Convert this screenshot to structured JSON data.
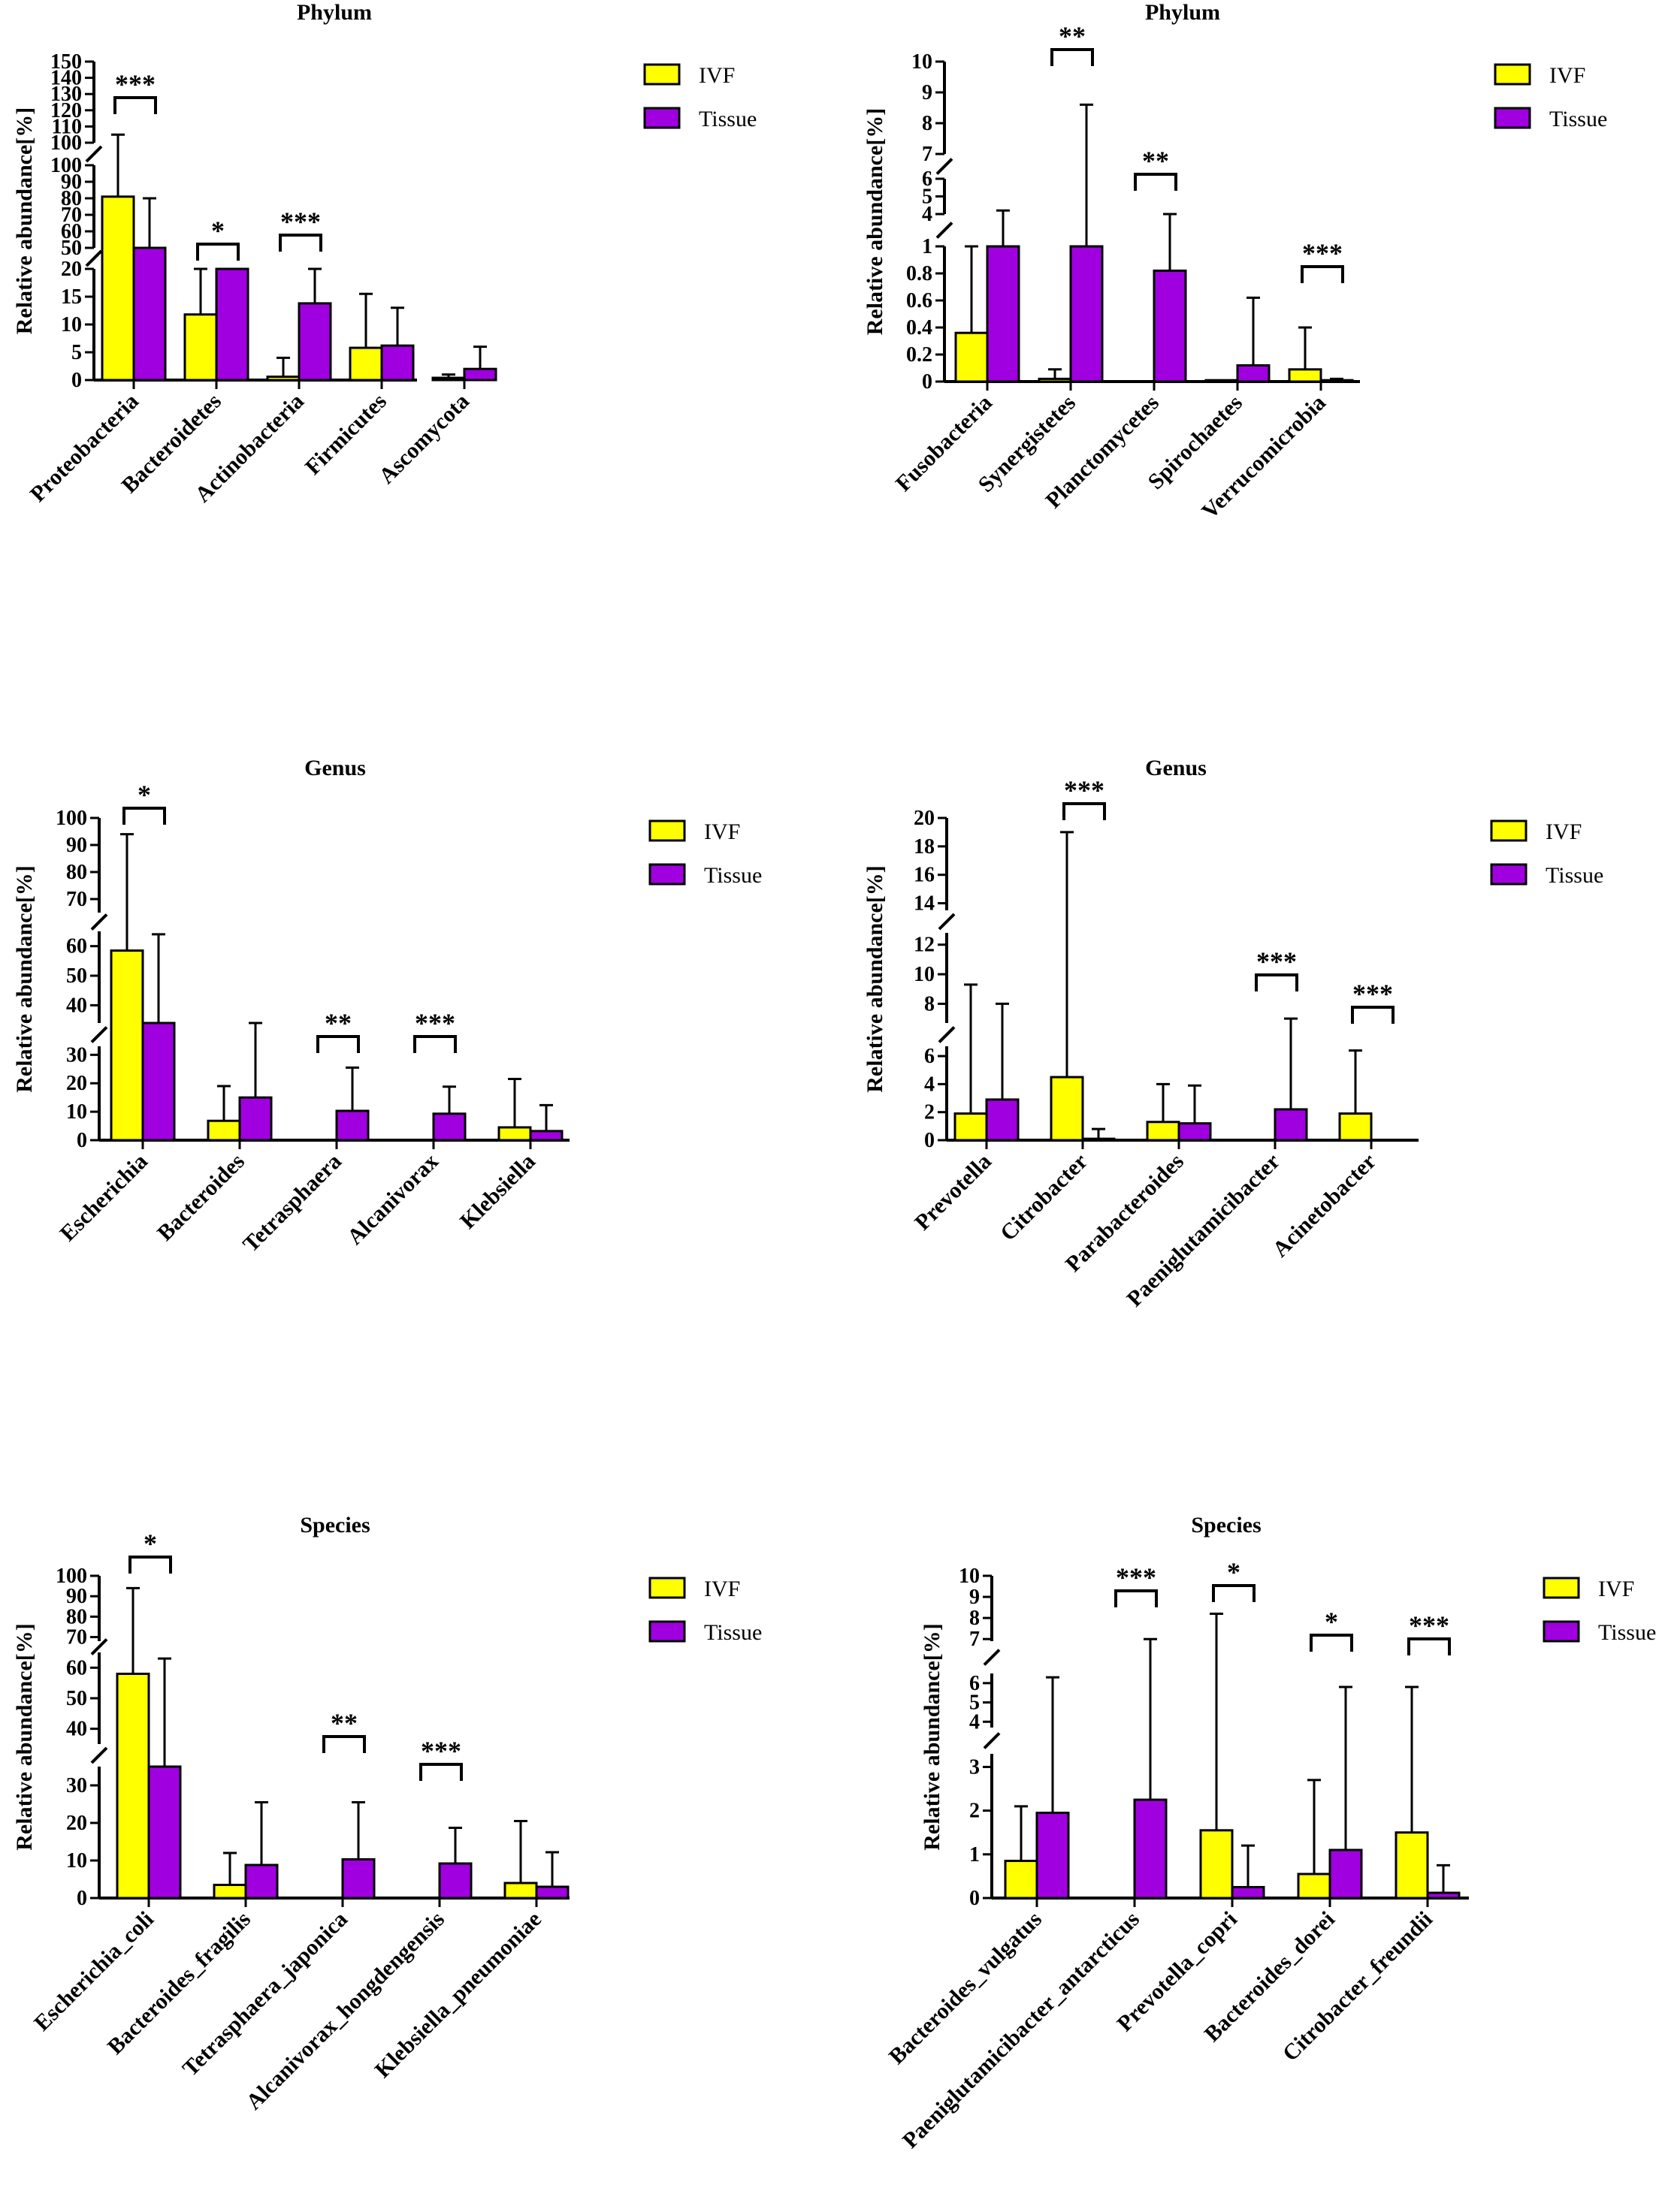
{
  "figure": {
    "colors": {
      "ivf": "#ffff00",
      "tissue": "#a000e0",
      "ink": "#000000"
    }
  },
  "chart_data": [
    {
      "id": "phylum-a",
      "type": "bar",
      "title": "Phylum",
      "ylabel": "Relative abundance[%]",
      "legend": {
        "ivf": "IVF",
        "tissue": "Tissue"
      },
      "categories": [
        "Proteobacteria",
        "Bacteroidetes",
        "Actinobacteria",
        "Firmicutes",
        "Ascomycota"
      ],
      "series": [
        {
          "name": "IVF",
          "values": [
            81,
            11.8,
            0.6,
            5.8,
            0.4
          ],
          "errors": [
            105,
            20,
            4,
            15.5,
            1
          ]
        },
        {
          "name": "Tissue",
          "values": [
            50,
            20,
            13.8,
            6.2,
            2.0
          ],
          "errors": [
            80,
            21,
            20,
            13,
            6
          ]
        }
      ],
      "yaxis_segments": [
        {
          "range": [
            0,
            20
          ],
          "ticks": [
            0,
            5,
            10,
            15,
            20
          ]
        },
        {
          "range": [
            50,
            100
          ],
          "ticks": [
            50,
            60,
            70,
            80,
            90,
            100
          ]
        },
        {
          "range": [
            100,
            150
          ],
          "ticks": [
            100,
            110,
            120,
            130,
            140,
            150
          ]
        }
      ],
      "significance": [
        {
          "category": "Proteobacteria",
          "label": "***"
        },
        {
          "category": "Bacteroidetes",
          "label": "*"
        },
        {
          "category": "Actinobacteria",
          "label": "***"
        }
      ]
    },
    {
      "id": "phylum-b",
      "type": "bar",
      "title": "Phylum",
      "ylabel": "Relative abundance[%]",
      "legend": {
        "ivf": "IVF",
        "tissue": "Tissue"
      },
      "categories": [
        "Fusobacteria",
        "Synergistetes",
        "Planctomycetes",
        "Spirochaetes",
        "Verrucomicrobia"
      ],
      "series": [
        {
          "name": "IVF",
          "values": [
            0.36,
            0.02,
            0.0,
            0.01,
            0.09
          ],
          "errors": [
            1.0,
            0.09,
            0,
            0.01,
            0.4
          ]
        },
        {
          "name": "Tissue",
          "values": [
            1.0,
            1.0,
            0.82,
            0.12,
            0.01
          ],
          "errors": [
            4.2,
            8.6,
            4.0,
            0.62,
            0.02
          ]
        }
      ],
      "yaxis_segments": [
        {
          "range": [
            0,
            1.0
          ],
          "ticks": [
            0.0,
            0.2,
            0.4,
            0.6,
            0.8,
            1.0
          ]
        },
        {
          "range": [
            4,
            6
          ],
          "ticks": [
            4,
            5,
            6
          ]
        },
        {
          "range": [
            7,
            10
          ],
          "ticks": [
            7,
            8,
            9,
            10
          ]
        }
      ],
      "significance": [
        {
          "category": "Synergistetes",
          "label": "**"
        },
        {
          "category": "Planctomycetes",
          "label": "**"
        },
        {
          "category": "Verrucomicrobia",
          "label": "***"
        }
      ]
    },
    {
      "id": "genus-a",
      "type": "bar",
      "title": "Genus",
      "ylabel": "Relative abundance[%]",
      "legend": {
        "ivf": "IVF",
        "tissue": "Tissue"
      },
      "categories": [
        "Escherichia",
        "Bacteroides",
        "Tetrasphaera",
        "Alcanivorax",
        "Klebsiella"
      ],
      "series": [
        {
          "name": "IVF",
          "values": [
            58.5,
            6.8,
            0.0,
            0.0,
            4.5
          ],
          "errors": [
            94,
            19,
            0,
            0,
            21.5
          ]
        },
        {
          "name": "Tissue",
          "values": [
            34,
            15,
            10.3,
            9.3,
            3.2
          ],
          "errors": [
            64,
            34,
            25.5,
            18.8,
            12.3
          ]
        }
      ],
      "yaxis_segments": [
        {
          "range": [
            0,
            33
          ],
          "ticks": [
            0,
            10,
            20,
            30
          ]
        },
        {
          "range": [
            34,
            65
          ],
          "ticks": [
            40,
            50,
            60
          ]
        },
        {
          "range": [
            65,
            100
          ],
          "ticks": [
            70,
            80,
            90,
            100
          ]
        }
      ],
      "significance": [
        {
          "category": "Escherichia",
          "label": "*"
        },
        {
          "category": "Tetrasphaera",
          "label": "**"
        },
        {
          "category": "Alcanivorax",
          "label": "***"
        }
      ]
    },
    {
      "id": "genus-b",
      "type": "bar",
      "title": "Genus",
      "ylabel": "Relative abundance[%]",
      "legend": {
        "ivf": "IVF",
        "tissue": "Tissue"
      },
      "categories": [
        "Prevotella",
        "Citrobacter",
        "Parabacteroides",
        "Paeniglutamicibacter",
        "Acinetobacter"
      ],
      "series": [
        {
          "name": "IVF",
          "values": [
            1.9,
            4.5,
            1.3,
            0.0,
            1.9
          ],
          "errors": [
            9.3,
            19,
            4.0,
            0,
            6.4
          ]
        },
        {
          "name": "Tissue",
          "values": [
            2.9,
            0.1,
            1.2,
            2.2,
            0.0
          ],
          "errors": [
            8.0,
            0.8,
            3.9,
            7.0,
            0
          ]
        }
      ],
      "yaxis_segments": [
        {
          "range": [
            0,
            6.7
          ],
          "ticks": [
            0,
            2,
            4,
            6
          ]
        },
        {
          "range": [
            6.7,
            12.8
          ],
          "ticks": [
            8,
            10,
            12
          ]
        },
        {
          "range": [
            13.5,
            20
          ],
          "ticks": [
            14,
            16,
            18,
            20
          ]
        }
      ],
      "significance": [
        {
          "category": "Citrobacter",
          "label": "***"
        },
        {
          "category": "Paeniglutamicibacter",
          "label": "***"
        },
        {
          "category": "Acinetobacter",
          "label": "***"
        }
      ]
    },
    {
      "id": "species-a",
      "type": "bar",
      "title": "Species",
      "ylabel": "Relative abundance[%]",
      "legend": {
        "ivf": "IVF",
        "tissue": "Tissue"
      },
      "categories": [
        "Escherichia_coli",
        "Bacteroides_fragilis",
        "Tetrasphaera_japonica",
        "Alcanivorax_hongdengensis",
        "Klebsiella_pneumoniae"
      ],
      "series": [
        {
          "name": "IVF",
          "values": [
            58,
            3.5,
            0.0,
            0.0,
            4.0
          ],
          "errors": [
            94,
            12,
            0,
            0,
            20.5
          ]
        },
        {
          "name": "Tissue",
          "values": [
            35,
            8.8,
            10.3,
            9.2,
            3.0
          ],
          "errors": [
            63,
            25.5,
            25.5,
            18.7,
            12.2
          ]
        }
      ],
      "yaxis_segments": [
        {
          "range": [
            0,
            35
          ],
          "ticks": [
            0,
            10,
            20,
            30
          ]
        },
        {
          "range": [
            35,
            65
          ],
          "ticks": [
            40,
            50,
            60
          ]
        },
        {
          "range": [
            68,
            100
          ],
          "ticks": [
            70,
            80,
            90,
            100
          ]
        }
      ],
      "significance": [
        {
          "category": "Escherichia_coli",
          "label": "*"
        },
        {
          "category": "Tetrasphaera_japonica",
          "label": "**"
        },
        {
          "category": "Alcanivorax_hongdengensis",
          "label": "***"
        }
      ]
    },
    {
      "id": "species-b",
      "type": "bar",
      "title": "Species",
      "ylabel": "Relative abundance[%]",
      "legend": {
        "ivf": "IVF",
        "tissue": "Tissue"
      },
      "categories": [
        "Bacteroides_vulgatus",
        "Paeniglutamicibacter_antarcticus",
        "Prevotella_copri",
        "Bacteroides_dorei",
        "Citrobacter_freundii"
      ],
      "series": [
        {
          "name": "IVF",
          "values": [
            0.85,
            0.0,
            1.55,
            0.55,
            1.5
          ],
          "errors": [
            2.1,
            0,
            8.2,
            2.7,
            5.8
          ]
        },
        {
          "name": "Tissue",
          "values": [
            1.95,
            2.25,
            0.25,
            1.1,
            0.12
          ],
          "errors": [
            6.3,
            7.0,
            1.2,
            5.8,
            0.75
          ]
        }
      ],
      "yaxis_segments": [
        {
          "range": [
            0,
            3.3
          ],
          "ticks": [
            0,
            1,
            2,
            3
          ]
        },
        {
          "range": [
            3.7,
            6.5
          ],
          "ticks": [
            4,
            5,
            6
          ]
        },
        {
          "range": [
            6.9,
            10
          ],
          "ticks": [
            7,
            8,
            9,
            10
          ]
        }
      ],
      "significance": [
        {
          "category": "Paeniglutamicibacter_antarcticus",
          "label": "***"
        },
        {
          "category": "Prevotella_copri",
          "label": "*"
        },
        {
          "category": "Bacteroides_dorei",
          "label": "*"
        },
        {
          "category": "Citrobacter_freundii",
          "label": "***"
        }
      ]
    }
  ]
}
